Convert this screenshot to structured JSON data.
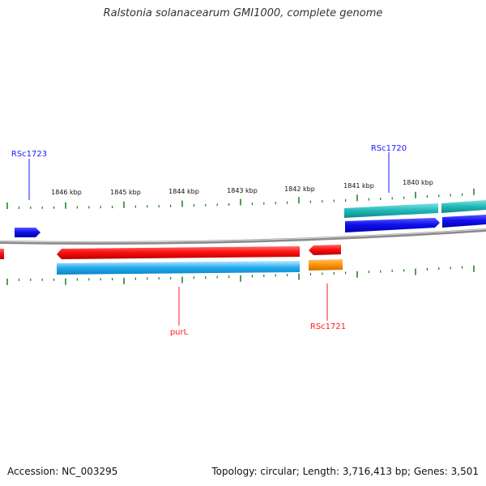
{
  "title": "Ralstonia solanacearum GMI1000, complete genome",
  "accession": "Accession: NC_003295",
  "summary": "Topology: circular; Length: 3,716,413 bp; Genes: 3,501",
  "ruler": {
    "labels": [
      "1846 kbp",
      "1845 kbp",
      "1844 kbp",
      "1843 kbp",
      "1842 kbp",
      "1841 kbp",
      "1840 kbp"
    ]
  },
  "genes": [
    {
      "name": "RSc1723",
      "strand": "+",
      "color": "#1a1aff"
    },
    {
      "name": "RSc1720",
      "strand": "+",
      "color": "#1a1aff"
    },
    {
      "name": "purL",
      "strand": "-",
      "color": "#ff1a1a"
    },
    {
      "name": "RSc1721",
      "strand": "-",
      "color": "#ff1a1a"
    }
  ],
  "track_colors": {
    "forward_cds": "#1414e6",
    "forward_gene": "#1fb8b8",
    "reverse_cds": "#e61414",
    "reverse_gene": "#1fa8e6",
    "reverse_misc": "#ff9400",
    "backbone": "#888888",
    "ticks": "#1a7a1a"
  }
}
